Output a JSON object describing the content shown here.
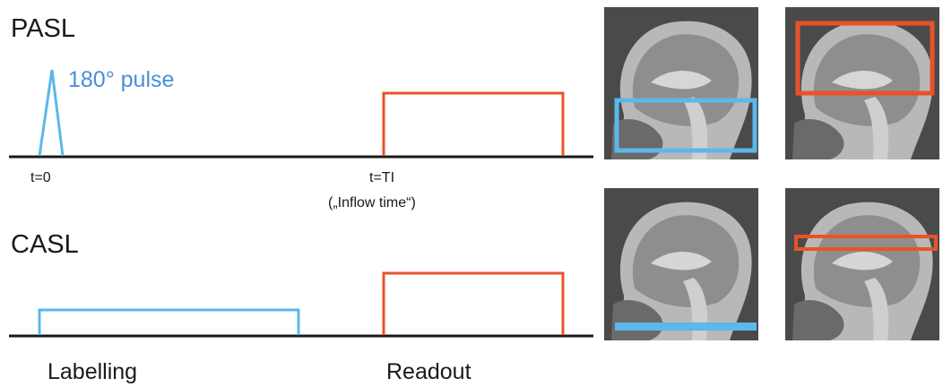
{
  "pasl": {
    "title": "PASL",
    "pulse_label": "180° pulse",
    "t0_label": "t=0",
    "ti_label": "t=TI",
    "inflow_label": "(„Inflow time“)"
  },
  "casl": {
    "title": "CASL"
  },
  "bottom": {
    "labelling": "Labelling",
    "readout": "Readout"
  },
  "colors": {
    "labelling": "#5bb8ea",
    "readout": "#e8532a",
    "axis": "#1a1a1a"
  },
  "mri_panels": [
    {
      "row": "pasl",
      "col": 1,
      "overlay": "blue-labelling-slab"
    },
    {
      "row": "pasl",
      "col": 2,
      "overlay": "red-imaging-slab"
    },
    {
      "row": "casl",
      "col": 1,
      "overlay": "blue-labelling-plane"
    },
    {
      "row": "casl",
      "col": 2,
      "overlay": "red-imaging-slab"
    }
  ]
}
